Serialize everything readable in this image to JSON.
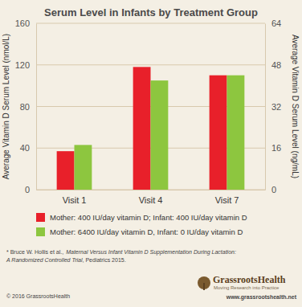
{
  "chart_data": {
    "type": "bar",
    "title": "Serum Level in Infants by Treatment Group",
    "y_label": "Average Vitamin D Serum Level (nmol/L)",
    "y2_label": "Average Vitamin D Serum Level (ng/mL)",
    "categories": [
      "Visit 1",
      "Visit 4",
      "Visit 7"
    ],
    "series": [
      {
        "name": "Mother: 400 IU/day vitamin D; Infant: 400 IU/day vitamin D",
        "color": "#e8202a",
        "values": [
          37,
          118,
          110
        ]
      },
      {
        "name": "Mother: 6400 IU/day vitamin D, Infant: 0 IU/day vitamin D",
        "color": "#8dc63f",
        "values": [
          43,
          105,
          110
        ]
      }
    ],
    "ylim": [
      0,
      160
    ],
    "yticks": [
      0,
      40,
      80,
      120,
      160
    ],
    "y2lim": [
      0,
      64
    ],
    "y2ticks": [
      0,
      16,
      32,
      48,
      64
    ],
    "grid": true,
    "legend": "bottom",
    "source": {
      "author": "* Bruce W. Hollis et al.,",
      "title": [
        "Maternal Versus Infant Vitamin D Supplementation During Lactation:",
        "A Randomized Controlled Trial"
      ],
      "journal": ", Pediatrics 2015."
    },
    "copyright": "© 2016 GrassrootsHealth",
    "logo": {
      "name": "GrassrootsHealth",
      "tagline": "Moving Research into Practice",
      "url": "www.grassrootshealth.net"
    }
  }
}
